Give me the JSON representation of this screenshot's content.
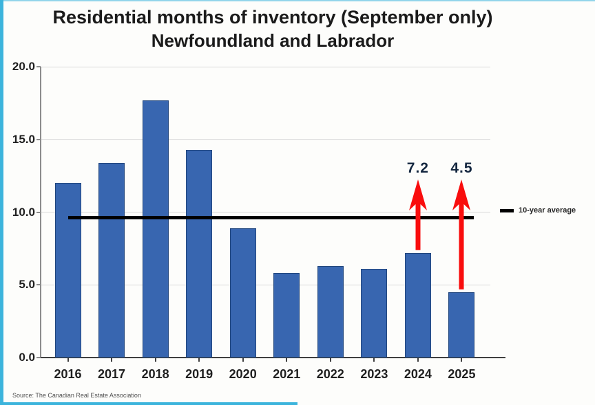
{
  "title": {
    "line1": "Residential months of inventory (September only)",
    "line2": "Newfoundland and Labrador"
  },
  "source": "Source: The Canadian Real Estate Association",
  "legend": {
    "label": "10-year average"
  },
  "colors": {
    "bar_fill": "#3866B0",
    "bar_border": "#20457C",
    "average_line": "#000000",
    "arrow_red": "#F90D0D",
    "annotation_text": "#13263F",
    "accent_border": "#3CB4DC",
    "grid": "#D8D8D8",
    "axis_dark": "#3F3F3F",
    "axis_light": "#8C8C8C"
  },
  "chart_data": {
    "type": "bar",
    "title": "Residential months of inventory (September only) — Newfoundland and Labrador",
    "categories": [
      "2016",
      "2017",
      "2018",
      "2019",
      "2020",
      "2021",
      "2022",
      "2023",
      "2024",
      "2025"
    ],
    "values": [
      12.0,
      13.4,
      17.7,
      14.3,
      8.9,
      5.8,
      6.3,
      6.1,
      7.2,
      4.5
    ],
    "xlabel": "",
    "ylabel": "",
    "ylim": [
      0,
      20
    ],
    "ytick_values": [
      0,
      5,
      10,
      15,
      20
    ],
    "ytick_labels": [
      "0.0",
      "5.0",
      "10.0",
      "15.0",
      "20.0"
    ],
    "grid": true,
    "legend_position": "right",
    "average_line": {
      "label": "10-year average",
      "value": 9.6
    },
    "annotations": [
      {
        "category": "2024",
        "label": "7.2"
      },
      {
        "category": "2025",
        "label": "4.5"
      }
    ]
  }
}
